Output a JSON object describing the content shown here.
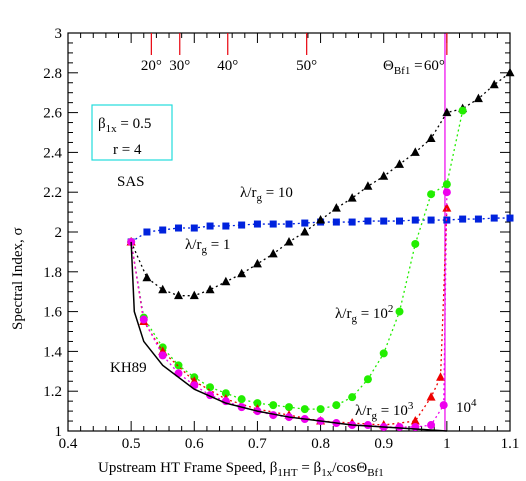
{
  "chart_data": {
    "type": "scatter",
    "xlim": [
      0.4,
      1.1
    ],
    "ylim": [
      1,
      3
    ],
    "xticks": [
      0.4,
      0.5,
      0.6,
      0.7,
      0.8,
      0.9,
      1,
      1.1
    ],
    "yticks": [
      1,
      1.2,
      1.4,
      1.6,
      1.8,
      2,
      2.2,
      2.4,
      2.6,
      2.8,
      3
    ],
    "x2ticks": [
      {
        "value": 0.532,
        "label": "20°"
      },
      {
        "value": 0.577,
        "label": "30°"
      },
      {
        "value": 0.653,
        "label": "40°"
      },
      {
        "value": 0.778,
        "label": "50°"
      },
      {
        "value": 1.0,
        "label": "60°"
      }
    ],
    "x2tick_color": "#e8000b",
    "x_label": [
      {
        "t": "Upstream HT Frame Speed, "
      },
      {
        "t": "β"
      },
      {
        "sub": "1HT"
      },
      {
        "t": " = β"
      },
      {
        "sub": "1x"
      },
      {
        "t": "/cosΘ"
      },
      {
        "sub": "Bf1"
      }
    ],
    "y_label": [
      {
        "t": "Spectral Index, σ"
      }
    ],
    "annotations": [
      [
        {
          "t": "β"
        },
        {
          "sub": "1x"
        },
        {
          "t": " = 0.5"
        }
      ],
      [
        {
          "t": "r = 4"
        }
      ],
      [
        {
          "t": "SAS"
        }
      ],
      [
        {
          "t": "λ/r"
        },
        {
          "sub": "g"
        },
        {
          "t": " = 10"
        }
      ],
      [
        {
          "t": "λ/r"
        },
        {
          "sub": "g"
        },
        {
          "t": " = 1"
        }
      ],
      [
        {
          "t": "λ/r"
        },
        {
          "sub": "g"
        },
        {
          "t": " = 10"
        },
        {
          "sup": "2"
        }
      ],
      [
        {
          "t": "λ/r"
        },
        {
          "sub": "g"
        },
        {
          "t": " = 10"
        },
        {
          "sup": "3"
        }
      ],
      [
        {
          "t": "10"
        },
        {
          "sup": "4"
        }
      ],
      [
        {
          "t": "KH89"
        }
      ],
      [
        {
          "t": "Θ"
        },
        {
          "sub": "Bf1"
        },
        {
          "t": " = "
        }
      ]
    ],
    "series": [
      {
        "color": "#0022dd",
        "marker": "square",
        "line": "dotted",
        "x": [
          0.5,
          0.525,
          0.55,
          0.575,
          0.6,
          0.625,
          0.65,
          0.675,
          0.7,
          0.725,
          0.75,
          0.775,
          0.8,
          0.825,
          0.85,
          0.875,
          0.9,
          0.925,
          0.95,
          0.975,
          1.0,
          1.025,
          1.05,
          1.075,
          1.1
        ],
        "values": [
          1.95,
          2.0,
          2.01,
          2.02,
          2.02,
          2.03,
          2.03,
          2.035,
          2.04,
          2.04,
          2.04,
          2.045,
          2.05,
          2.05,
          2.05,
          2.055,
          2.055,
          2.055,
          2.06,
          2.06,
          2.06,
          2.065,
          2.065,
          2.07,
          2.07
        ]
      },
      {
        "color": "#000000",
        "marker": "triangle",
        "line": "dotted",
        "x": [
          0.5,
          0.525,
          0.55,
          0.575,
          0.6,
          0.625,
          0.65,
          0.675,
          0.7,
          0.725,
          0.75,
          0.775,
          0.8,
          0.825,
          0.85,
          0.875,
          0.9,
          0.925,
          0.95,
          0.975,
          1.0,
          1.025,
          1.05,
          1.075,
          1.1
        ],
        "values": [
          1.95,
          1.77,
          1.71,
          1.68,
          1.68,
          1.71,
          1.75,
          1.79,
          1.84,
          1.89,
          1.95,
          2.0,
          2.06,
          2.12,
          2.17,
          2.23,
          2.28,
          2.34,
          2.4,
          2.47,
          2.6,
          2.62,
          2.67,
          2.74,
          2.8
        ]
      },
      {
        "color": "#22ee00",
        "marker": "circle",
        "line": "dotted",
        "x": [
          0.5,
          0.52,
          0.55,
          0.575,
          0.6,
          0.625,
          0.65,
          0.675,
          0.7,
          0.725,
          0.75,
          0.775,
          0.8,
          0.825,
          0.85,
          0.875,
          0.9,
          0.925,
          0.95,
          0.975,
          1.0,
          1.025
        ],
        "values": [
          1.95,
          1.57,
          1.42,
          1.33,
          1.27,
          1.22,
          1.19,
          1.16,
          1.14,
          1.13,
          1.12,
          1.11,
          1.11,
          1.13,
          1.17,
          1.26,
          1.39,
          1.6,
          1.94,
          2.19,
          2.24,
          2.61
        ]
      },
      {
        "color": "#ee0000",
        "marker": "triangle",
        "line": "dotted",
        "x": [
          0.5,
          0.52,
          0.55,
          0.6,
          0.65,
          0.7,
          0.75,
          0.8,
          0.85,
          0.9,
          0.95,
          0.975,
          0.99,
          1.0
        ],
        "values": [
          1.95,
          1.55,
          1.4,
          1.25,
          1.16,
          1.11,
          1.08,
          1.05,
          1.04,
          1.03,
          1.05,
          1.17,
          1.27,
          2.12
        ]
      },
      {
        "color": "#ee00ee",
        "marker": "circle",
        "line": "dotted",
        "x": [
          0.5,
          0.52,
          0.55,
          0.575,
          0.6,
          0.625,
          0.65,
          0.675,
          0.7,
          0.725,
          0.75,
          0.775,
          0.8,
          0.825,
          0.85,
          0.875,
          0.9,
          0.925,
          0.95,
          0.975,
          0.995,
          1.0
        ],
        "values": [
          1.95,
          1.56,
          1.38,
          1.29,
          1.23,
          1.18,
          1.15,
          1.12,
          1.1,
          1.08,
          1.07,
          1.06,
          1.05,
          1.04,
          1.03,
          1.03,
          1.02,
          1.02,
          1.02,
          1.03,
          1.13,
          2.2
        ]
      },
      {
        "color": "#000000",
        "marker": "none",
        "line": "solid",
        "x": [
          0.5,
          0.505,
          0.52,
          0.55,
          0.6,
          0.65,
          0.7,
          0.75,
          0.8,
          0.85,
          0.9,
          0.95,
          1.0
        ],
        "values": [
          1.95,
          1.6,
          1.45,
          1.33,
          1.21,
          1.14,
          1.1,
          1.07,
          1.05,
          1.03,
          1.02,
          1.01,
          1.0
        ]
      }
    ]
  }
}
